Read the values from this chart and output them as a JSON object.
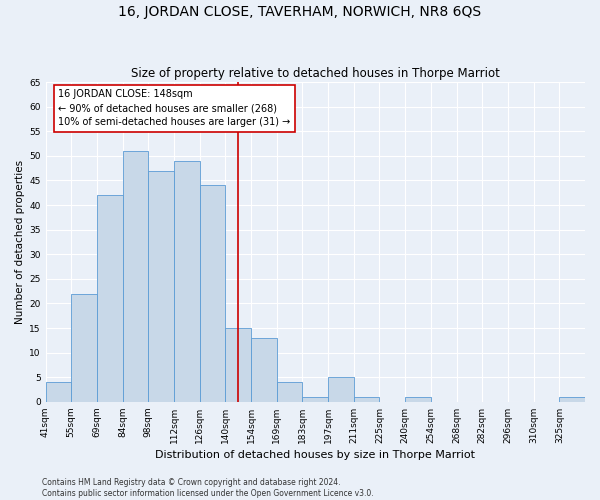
{
  "title": "16, JORDAN CLOSE, TAVERHAM, NORWICH, NR8 6QS",
  "subtitle": "Size of property relative to detached houses in Thorpe Marriot",
  "xlabel": "Distribution of detached houses by size in Thorpe Marriot",
  "ylabel": "Number of detached properties",
  "bin_labels": [
    "41sqm",
    "55sqm",
    "69sqm",
    "84sqm",
    "98sqm",
    "112sqm",
    "126sqm",
    "140sqm",
    "154sqm",
    "169sqm",
    "183sqm",
    "197sqm",
    "211sqm",
    "225sqm",
    "240sqm",
    "254sqm",
    "268sqm",
    "282sqm",
    "296sqm",
    "310sqm",
    "325sqm"
  ],
  "bar_heights": [
    4,
    22,
    42,
    51,
    47,
    49,
    44,
    15,
    13,
    4,
    1,
    5,
    1,
    0,
    1,
    0,
    0,
    0,
    0,
    0,
    1
  ],
  "bar_color": "#c8d8e8",
  "bar_edge_color": "#5b9bd5",
  "vline_x": 7.5,
  "vline_color": "#cc0000",
  "annotation_text": "16 JORDAN CLOSE: 148sqm\n← 90% of detached houses are smaller (268)\n10% of semi-detached houses are larger (31) →",
  "annotation_box_color": "#ffffff",
  "annotation_box_edge": "#cc0000",
  "footnote": "Contains HM Land Registry data © Crown copyright and database right 2024.\nContains public sector information licensed under the Open Government Licence v3.0.",
  "ylim": [
    0,
    65
  ],
  "yticks": [
    0,
    5,
    10,
    15,
    20,
    25,
    30,
    35,
    40,
    45,
    50,
    55,
    60,
    65
  ],
  "bg_color": "#eaf0f8",
  "grid_color": "#ffffff",
  "title_fontsize": 10,
  "subtitle_fontsize": 8.5,
  "xlabel_fontsize": 8,
  "ylabel_fontsize": 7.5,
  "tick_fontsize": 6.5,
  "annot_fontsize": 7,
  "footnote_fontsize": 5.5
}
